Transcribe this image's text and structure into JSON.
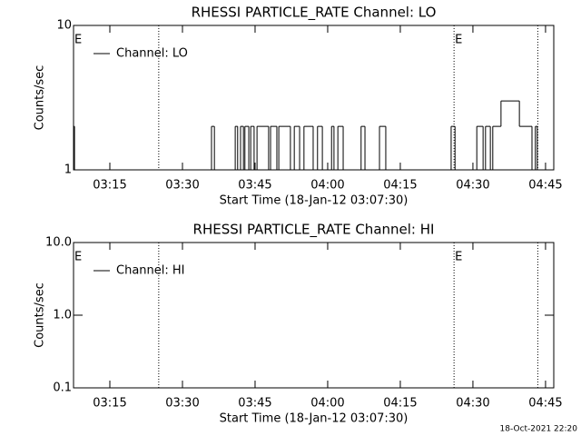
{
  "chart_data": [
    {
      "type": "line",
      "title": "RHESSI PARTICLE_RATE Channel: LO",
      "xlabel": "Start Time (18-Jan-12 03:07:30)",
      "ylabel": "Counts/sec",
      "log_y": true,
      "xlim": [
        187.5,
        286.7
      ],
      "xticks": [
        {
          "value": 195,
          "label": "03:15"
        },
        {
          "value": 210,
          "label": "03:30"
        },
        {
          "value": 225,
          "label": "03:45"
        },
        {
          "value": 240,
          "label": "04:00"
        },
        {
          "value": 255,
          "label": "04:15"
        },
        {
          "value": 270,
          "label": "04:30"
        },
        {
          "value": 285,
          "label": "04:45"
        }
      ],
      "ylim": [
        1,
        10
      ],
      "yticks": [
        1,
        10
      ],
      "vlines": [
        205.1,
        266.1,
        283.4
      ],
      "annotations": [
        {
          "text": "E",
          "x": 187.5
        },
        {
          "text": "E",
          "x": 266.1
        }
      ],
      "series": [
        {
          "name": "Channel: LO",
          "color": "#000000",
          "x": [
            187.5,
            187.7,
            216.0,
            216.6,
            220.9,
            221.4,
            222.0,
            222.6,
            222.9,
            223.7,
            224.1,
            224.8,
            225.4,
            227.8,
            228.2,
            229.5,
            229.9,
            232.3,
            233.1,
            234.2,
            235.1,
            237.0,
            237.9,
            238.9,
            240.8,
            241.3,
            242.1,
            243.2,
            246.9,
            247.7,
            250.7,
            252.0,
            265.5,
            266.3,
            270.8,
            272.1,
            272.6,
            273.6,
            274.1,
            275.8,
            279.6,
            282.2,
            282.9,
            283.3
          ],
          "values": [
            2,
            1,
            2,
            1,
            2,
            1,
            2,
            1,
            2,
            1,
            2,
            1,
            2,
            1,
            2,
            1,
            2,
            1,
            2,
            1,
            2,
            1,
            2,
            1,
            2,
            1,
            2,
            1,
            2,
            1,
            2,
            1,
            2,
            1,
            2,
            1,
            2,
            1,
            2,
            3,
            2,
            1,
            2,
            1
          ]
        }
      ]
    },
    {
      "type": "line",
      "title": "RHESSI PARTICLE_RATE Channel: HI",
      "xlabel": "Start Time (18-Jan-12 03:07:30)",
      "ylabel": "Counts/sec",
      "log_y": true,
      "xlim": [
        187.5,
        286.7
      ],
      "xticks": [
        {
          "value": 195,
          "label": "03:15"
        },
        {
          "value": 210,
          "label": "03:30"
        },
        {
          "value": 225,
          "label": "03:45"
        },
        {
          "value": 240,
          "label": "04:00"
        },
        {
          "value": 255,
          "label": "04:15"
        },
        {
          "value": 270,
          "label": "04:30"
        },
        {
          "value": 285,
          "label": "04:45"
        }
      ],
      "ylim": [
        0.1,
        10
      ],
      "yticks": [
        0.1,
        {
          "value": 1,
          "label": "1.0"
        },
        {
          "value": 10,
          "label": "10.0"
        }
      ],
      "vlines": [
        205.1,
        266.1,
        283.4
      ],
      "annotations": [
        {
          "text": "E",
          "x": 187.5
        },
        {
          "text": "E",
          "x": 266.1
        }
      ],
      "series": [
        {
          "name": "Channel: HI",
          "color": "#000000",
          "x": [],
          "values": []
        }
      ]
    }
  ],
  "footer": "18-Oct-2021 22:20"
}
